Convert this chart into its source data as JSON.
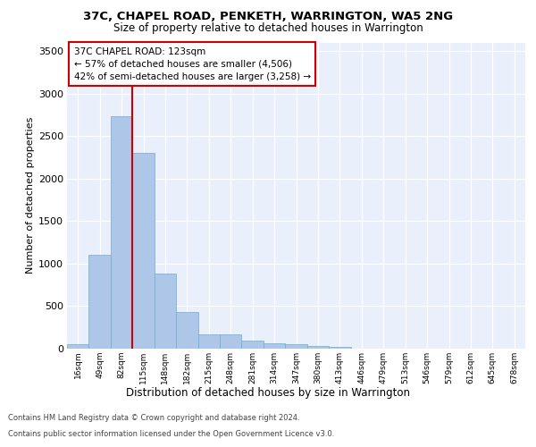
{
  "title": "37C, CHAPEL ROAD, PENKETH, WARRINGTON, WA5 2NG",
  "subtitle": "Size of property relative to detached houses in Warrington",
  "xlabel": "Distribution of detached houses by size in Warrington",
  "ylabel": "Number of detached properties",
  "categories": [
    "16sqm",
    "49sqm",
    "82sqm",
    "115sqm",
    "148sqm",
    "182sqm",
    "215sqm",
    "248sqm",
    "281sqm",
    "314sqm",
    "347sqm",
    "380sqm",
    "413sqm",
    "446sqm",
    "479sqm",
    "513sqm",
    "546sqm",
    "579sqm",
    "612sqm",
    "645sqm",
    "678sqm"
  ],
  "values": [
    55,
    1100,
    2730,
    2300,
    880,
    430,
    170,
    170,
    95,
    65,
    55,
    30,
    25,
    0,
    0,
    0,
    0,
    0,
    0,
    0,
    0
  ],
  "bar_color": "#aec6e8",
  "bar_edge_color": "#6aaed6",
  "vline_color": "#cc0000",
  "annotation_text": "37C CHAPEL ROAD: 123sqm\n← 57% of detached houses are smaller (4,506)\n42% of semi-detached houses are larger (3,258) →",
  "annotation_box_edge_color": "#cc0000",
  "ylim": [
    0,
    3600
  ],
  "yticks": [
    0,
    500,
    1000,
    1500,
    2000,
    2500,
    3000,
    3500
  ],
  "bg_color": "#eaf0fb",
  "grid_color": "#ffffff",
  "footer_line1": "Contains HM Land Registry data © Crown copyright and database right 2024.",
  "footer_line2": "Contains public sector information licensed under the Open Government Licence v3.0."
}
